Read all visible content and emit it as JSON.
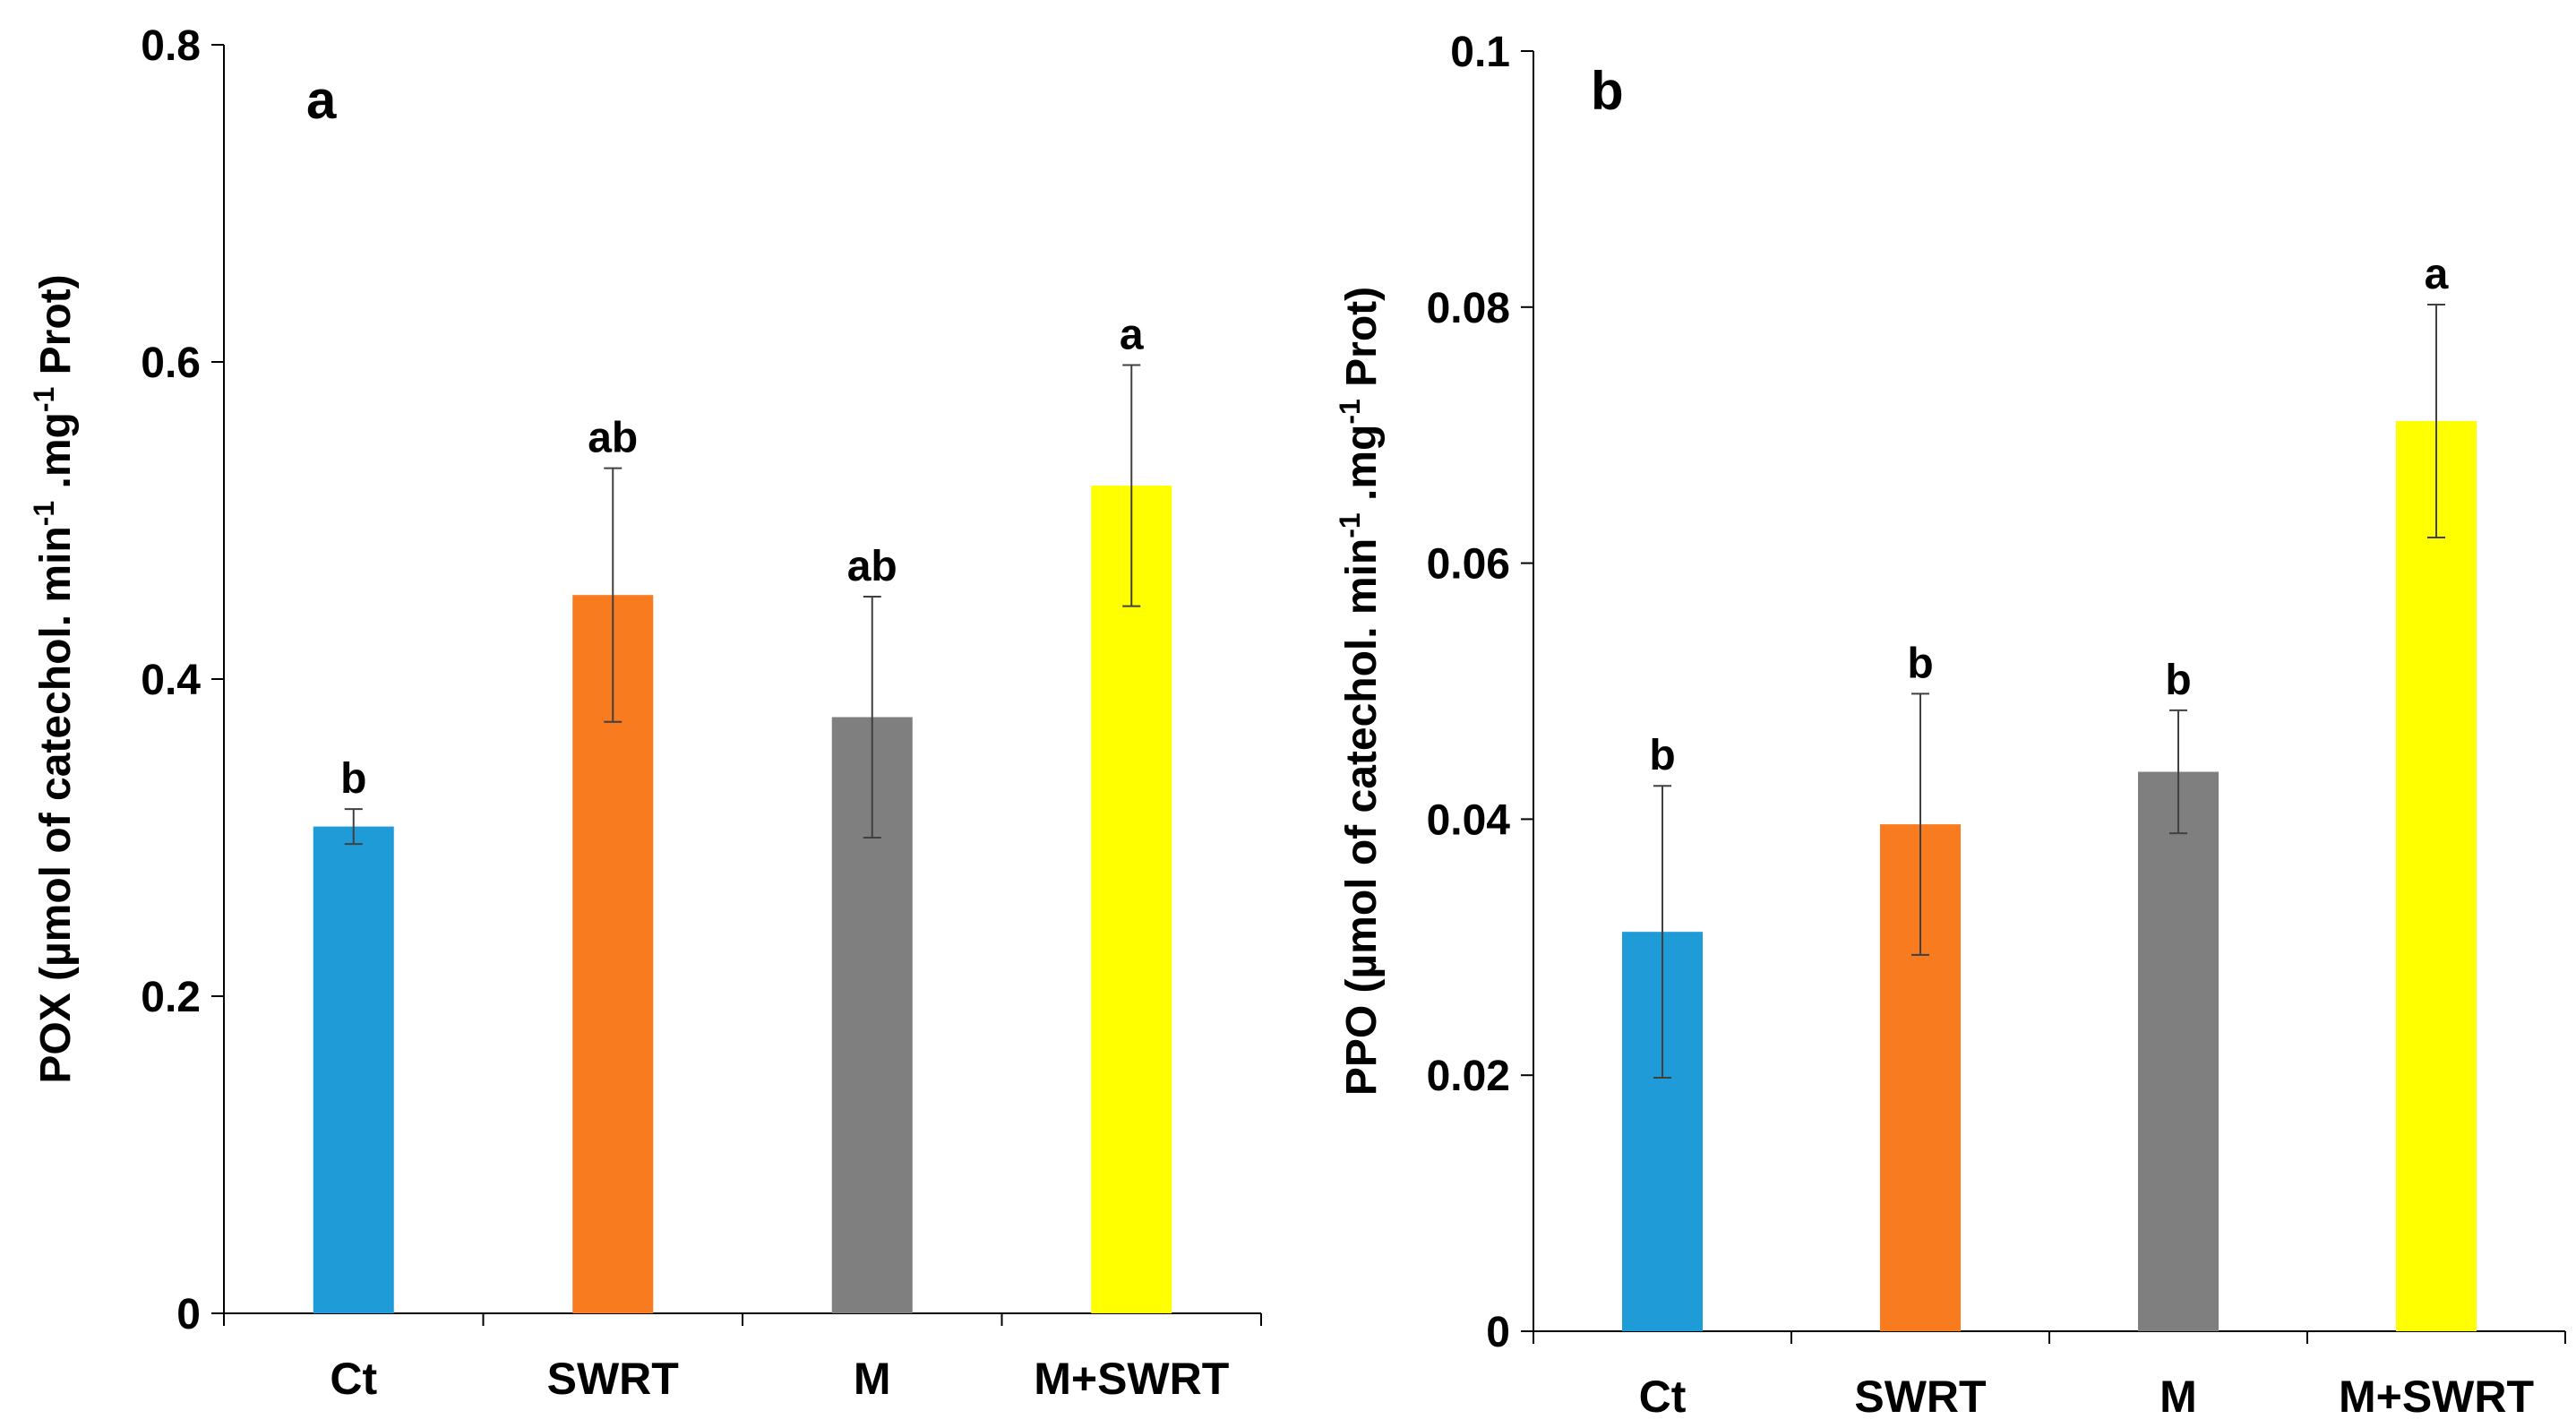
{
  "colors": [
    "#1f9bd8",
    "#f97b20",
    "#7f7f7f",
    "#ffff00"
  ],
  "chart_data": [
    {
      "type": "bar",
      "panel_label": "a",
      "title": "",
      "categories": [
        "Ct",
        "SWRT",
        "M",
        "M+SWRT"
      ],
      "values": [
        0.307,
        0.453,
        0.376,
        0.522
      ],
      "errors": [
        0.011,
        0.08,
        0.076,
        0.076
      ],
      "significance": [
        "b",
        "ab",
        "ab",
        "a"
      ],
      "ylabel_parts": [
        "POX (µmol of catechol. min",
        "-1",
        " .mg",
        "-1",
        " Prot)"
      ],
      "xlabel": "",
      "ylim": [
        0,
        0.8
      ],
      "yticks": [
        0,
        0.2,
        0.4,
        0.6,
        0.8
      ],
      "ytick_labels": [
        "0",
        "0.2",
        "0.4",
        "0.6",
        "0.8"
      ],
      "grid": false
    },
    {
      "type": "bar",
      "panel_label": "b",
      "title": "",
      "categories": [
        "Ct",
        "SWRT",
        "M",
        "M+SWRT"
      ],
      "values": [
        0.0312,
        0.0396,
        0.0437,
        0.0711
      ],
      "errors": [
        0.0114,
        0.0102,
        0.0048,
        0.0091
      ],
      "significance": [
        "b",
        "b",
        "b",
        "a"
      ],
      "ylabel_parts": [
        "PPO (µmol of catechol. min",
        "-1",
        " .mg",
        "-1",
        " Prot)"
      ],
      "xlabel": "",
      "ylim": [
        0,
        0.1
      ],
      "yticks": [
        0,
        0.02,
        0.04,
        0.06,
        0.08,
        0.1
      ],
      "ytick_labels": [
        "0",
        "0.02",
        "0.04",
        "0.06",
        "0.08",
        "0.1"
      ],
      "grid": false
    }
  ]
}
